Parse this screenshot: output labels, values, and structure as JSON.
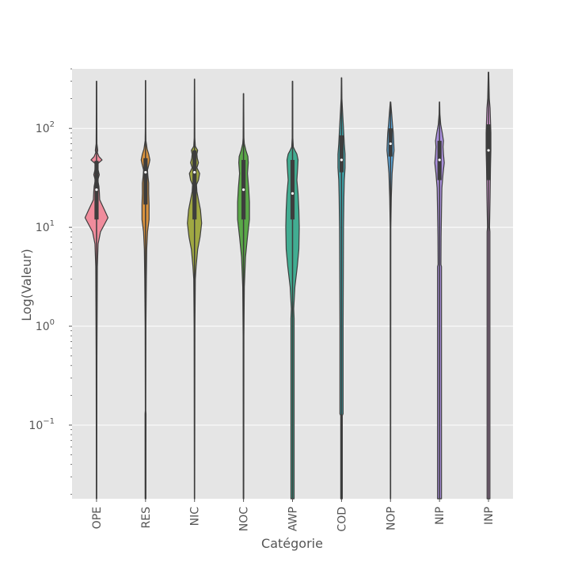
{
  "chart_data": {
    "type": "violin",
    "title": "",
    "xlabel": "Catégorie",
    "ylabel": "Log(Valeur)",
    "yscale": "log",
    "ylim": [
      0.018,
      400
    ],
    "grid": true,
    "colors": {
      "background": "#e5e5e5",
      "grid": "#ffffff",
      "outline": "#3d3d3d",
      "text": "#555555"
    },
    "yticks": [
      {
        "value": 0.1,
        "base": "10",
        "exp": "−1"
      },
      {
        "value": 1,
        "base": "10",
        "exp": "0"
      },
      {
        "value": 10,
        "base": "10",
        "exp": "1"
      },
      {
        "value": 100,
        "base": "10",
        "exp": "2"
      }
    ],
    "series": [
      {
        "name": "OPE",
        "color": "#f08c9c",
        "min": 0.018,
        "max": 300,
        "q1": 12,
        "median": 24,
        "q3": 47,
        "profile": [
          [
            0.018,
            0.2
          ],
          [
            0.5,
            0.5
          ],
          [
            4,
            1.0
          ],
          [
            6.8,
            2.0
          ],
          [
            9,
            5.0
          ],
          [
            12.5,
            14.5
          ],
          [
            15,
            10.0
          ],
          [
            19,
            4.0
          ],
          [
            23,
            3.5
          ],
          [
            26,
            3.0
          ],
          [
            30,
            1.5
          ],
          [
            34,
            3.5
          ],
          [
            38,
            2.0
          ],
          [
            44,
            1.5
          ],
          [
            48,
            7.0
          ],
          [
            52,
            3.0
          ],
          [
            57,
            1.0
          ],
          [
            60,
            1.5
          ],
          [
            70,
            0.5
          ],
          [
            100,
            0.4
          ],
          [
            300,
            0.2
          ]
        ]
      },
      {
        "name": "RES",
        "color": "#d9923e",
        "min": 0.018,
        "max": 305,
        "q1": 17,
        "median": 36,
        "q3": 50,
        "profile": [
          [
            0.018,
            0.5
          ],
          [
            0.13,
            0.6
          ],
          [
            0.14,
            0.3
          ],
          [
            1,
            0.5
          ],
          [
            3,
            1.0
          ],
          [
            6,
            1.5
          ],
          [
            9,
            2.5
          ],
          [
            12,
            4.5
          ],
          [
            17,
            4.5
          ],
          [
            22,
            4.0
          ],
          [
            28,
            4.0
          ],
          [
            33,
            3.0
          ],
          [
            38,
            2.5
          ],
          [
            44,
            4.5
          ],
          [
            48,
            5.5
          ],
          [
            55,
            4.0
          ],
          [
            62,
            2.0
          ],
          [
            75,
            0.5
          ],
          [
            100,
            0.3
          ],
          [
            305,
            0.2
          ]
        ]
      },
      {
        "name": "NIC",
        "color": "#a0a842",
        "min": 0.018,
        "max": 315,
        "q1": 12,
        "median": 36,
        "q3": 60,
        "profile": [
          [
            0.018,
            0.2
          ],
          [
            1,
            0.5
          ],
          [
            3,
            1.0
          ],
          [
            4,
            2.0
          ],
          [
            6,
            4.0
          ],
          [
            8,
            7.0
          ],
          [
            11,
            9.0
          ],
          [
            15,
            7.5
          ],
          [
            19,
            5.0
          ],
          [
            23,
            3.0
          ],
          [
            27,
            2.5
          ],
          [
            30,
            5.0
          ],
          [
            35,
            6.5
          ],
          [
            40,
            3.0
          ],
          [
            45,
            5.0
          ],
          [
            50,
            3.5
          ],
          [
            55,
            3.0
          ],
          [
            60,
            4.0
          ],
          [
            66,
            1.0
          ],
          [
            80,
            0.4
          ],
          [
            315,
            0.2
          ]
        ]
      },
      {
        "name": "NOC",
        "color": "#5aa848",
        "min": 0.018,
        "max": 225,
        "q1": 12,
        "median": 24,
        "q3": 48,
        "profile": [
          [
            0.018,
            0.3
          ],
          [
            0.8,
            0.5
          ],
          [
            2.5,
            1.0
          ],
          [
            5,
            2.5
          ],
          [
            8,
            5.0
          ],
          [
            12,
            7.5
          ],
          [
            18,
            7.5
          ],
          [
            25,
            6.5
          ],
          [
            35,
            5.0
          ],
          [
            45,
            6.0
          ],
          [
            52,
            5.5
          ],
          [
            60,
            3.0
          ],
          [
            70,
            1.0
          ],
          [
            80,
            0.5
          ],
          [
            225,
            0.2
          ]
        ]
      },
      {
        "name": "AWP",
        "color": "#42ad92",
        "min": 0.018,
        "max": 300,
        "q1": 12,
        "median": 22,
        "q3": 48,
        "profile": [
          [
            0.018,
            2.0
          ],
          [
            1.2,
            2.0
          ],
          [
            1.5,
            1.5
          ],
          [
            2.5,
            3.0
          ],
          [
            4,
            6.0
          ],
          [
            6,
            8.0
          ],
          [
            10,
            8.5
          ],
          [
            15,
            8.0
          ],
          [
            22,
            7.0
          ],
          [
            30,
            5.5
          ],
          [
            40,
            6.5
          ],
          [
            48,
            7.0
          ],
          [
            55,
            5.5
          ],
          [
            60,
            3.0
          ],
          [
            65,
            1.0
          ],
          [
            80,
            0.4
          ],
          [
            300,
            0.2
          ]
        ]
      },
      {
        "name": "COD",
        "color": "#3fa3a8",
        "min": 0.018,
        "max": 325,
        "q1": 36,
        "median": 48,
        "q3": 85,
        "profile": [
          [
            0.018,
            1.0
          ],
          [
            0.125,
            1.0
          ],
          [
            0.13,
            2.0
          ],
          [
            1,
            2.0
          ],
          [
            10,
            2.5
          ],
          [
            20,
            3.0
          ],
          [
            30,
            3.5
          ],
          [
            40,
            4.5
          ],
          [
            55,
            4.5
          ],
          [
            70,
            3.5
          ],
          [
            100,
            2.5
          ],
          [
            140,
            1.5
          ],
          [
            200,
            0.5
          ],
          [
            325,
            0.2
          ]
        ]
      },
      {
        "name": "NOP",
        "color": "#5aa8dc",
        "min": 0.018,
        "max": 185,
        "q1": 52,
        "median": 70,
        "q3": 100,
        "profile": [
          [
            0.018,
            0.2
          ],
          [
            10,
            0.4
          ],
          [
            20,
            1.0
          ],
          [
            35,
            2.0
          ],
          [
            50,
            3.5
          ],
          [
            60,
            4.5
          ],
          [
            75,
            4.0
          ],
          [
            90,
            3.5
          ],
          [
            110,
            2.5
          ],
          [
            140,
            1.5
          ],
          [
            185,
            0.3
          ]
        ]
      },
      {
        "name": "NIP",
        "color": "#a98fdc",
        "min": 0.018,
        "max": 185,
        "q1": 30,
        "median": 48,
        "q3": 75,
        "profile": [
          [
            0.018,
            2.5
          ],
          [
            4,
            2.5
          ],
          [
            4.2,
            1.8
          ],
          [
            8,
            2.0
          ],
          [
            15,
            2.5
          ],
          [
            25,
            3.0
          ],
          [
            35,
            4.5
          ],
          [
            45,
            6.0
          ],
          [
            55,
            5.0
          ],
          [
            65,
            4.5
          ],
          [
            75,
            5.0
          ],
          [
            90,
            3.5
          ],
          [
            110,
            1.5
          ],
          [
            140,
            0.5
          ],
          [
            185,
            0.2
          ]
        ]
      },
      {
        "name": "INP",
        "color": "#d89ad6",
        "min": 0.018,
        "max": 370,
        "q1": 30,
        "median": 60,
        "q3": 110,
        "profile": [
          [
            0.018,
            1.8
          ],
          [
            9,
            1.8
          ],
          [
            10,
            1.3
          ],
          [
            20,
            2.0
          ],
          [
            40,
            2.5
          ],
          [
            60,
            3.0
          ],
          [
            90,
            3.0
          ],
          [
            120,
            2.5
          ],
          [
            160,
            2.0
          ],
          [
            200,
            1.0
          ],
          [
            370,
            0.3
          ]
        ]
      }
    ]
  }
}
